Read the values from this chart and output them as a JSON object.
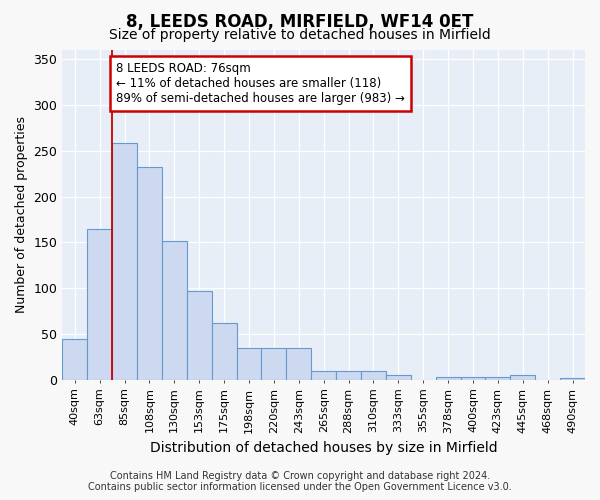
{
  "title1": "8, LEEDS ROAD, MIRFIELD, WF14 0ET",
  "title2": "Size of property relative to detached houses in Mirfield",
  "xlabel": "Distribution of detached houses by size in Mirfield",
  "ylabel": "Number of detached properties",
  "categories": [
    "40sqm",
    "63sqm",
    "85sqm",
    "108sqm",
    "130sqm",
    "153sqm",
    "175sqm",
    "198sqm",
    "220sqm",
    "243sqm",
    "265sqm",
    "288sqm",
    "310sqm",
    "333sqm",
    "355sqm",
    "378sqm",
    "400sqm",
    "423sqm",
    "445sqm",
    "468sqm",
    "490sqm"
  ],
  "values": [
    45,
    165,
    258,
    232,
    152,
    97,
    62,
    35,
    35,
    35,
    10,
    10,
    10,
    5,
    0,
    3,
    3,
    3,
    5,
    0,
    2
  ],
  "bar_color": "#ccd9f0",
  "bar_edge_color": "#6699cc",
  "red_line_index": 2,
  "ylim": [
    0,
    360
  ],
  "yticks": [
    0,
    50,
    100,
    150,
    200,
    250,
    300,
    350
  ],
  "annotation_text": "8 LEEDS ROAD: 76sqm\n← 11% of detached houses are smaller (118)\n89% of semi-detached houses are larger (983) →",
  "annotation_box_facecolor": "#ffffff",
  "annotation_box_edgecolor": "#cc0000",
  "red_line_color": "#cc0000",
  "footer1": "Contains HM Land Registry data © Crown copyright and database right 2024.",
  "footer2": "Contains public sector information licensed under the Open Government Licence v3.0.",
  "bg_color": "#e8eef8",
  "grid_color": "#ffffff",
  "fig_facecolor": "#f8f8f8",
  "title1_fontsize": 12,
  "title2_fontsize": 10,
  "tick_fontsize": 8,
  "ylabel_fontsize": 9,
  "xlabel_fontsize": 10,
  "footer_fontsize": 7,
  "ann_fontsize": 8.5
}
